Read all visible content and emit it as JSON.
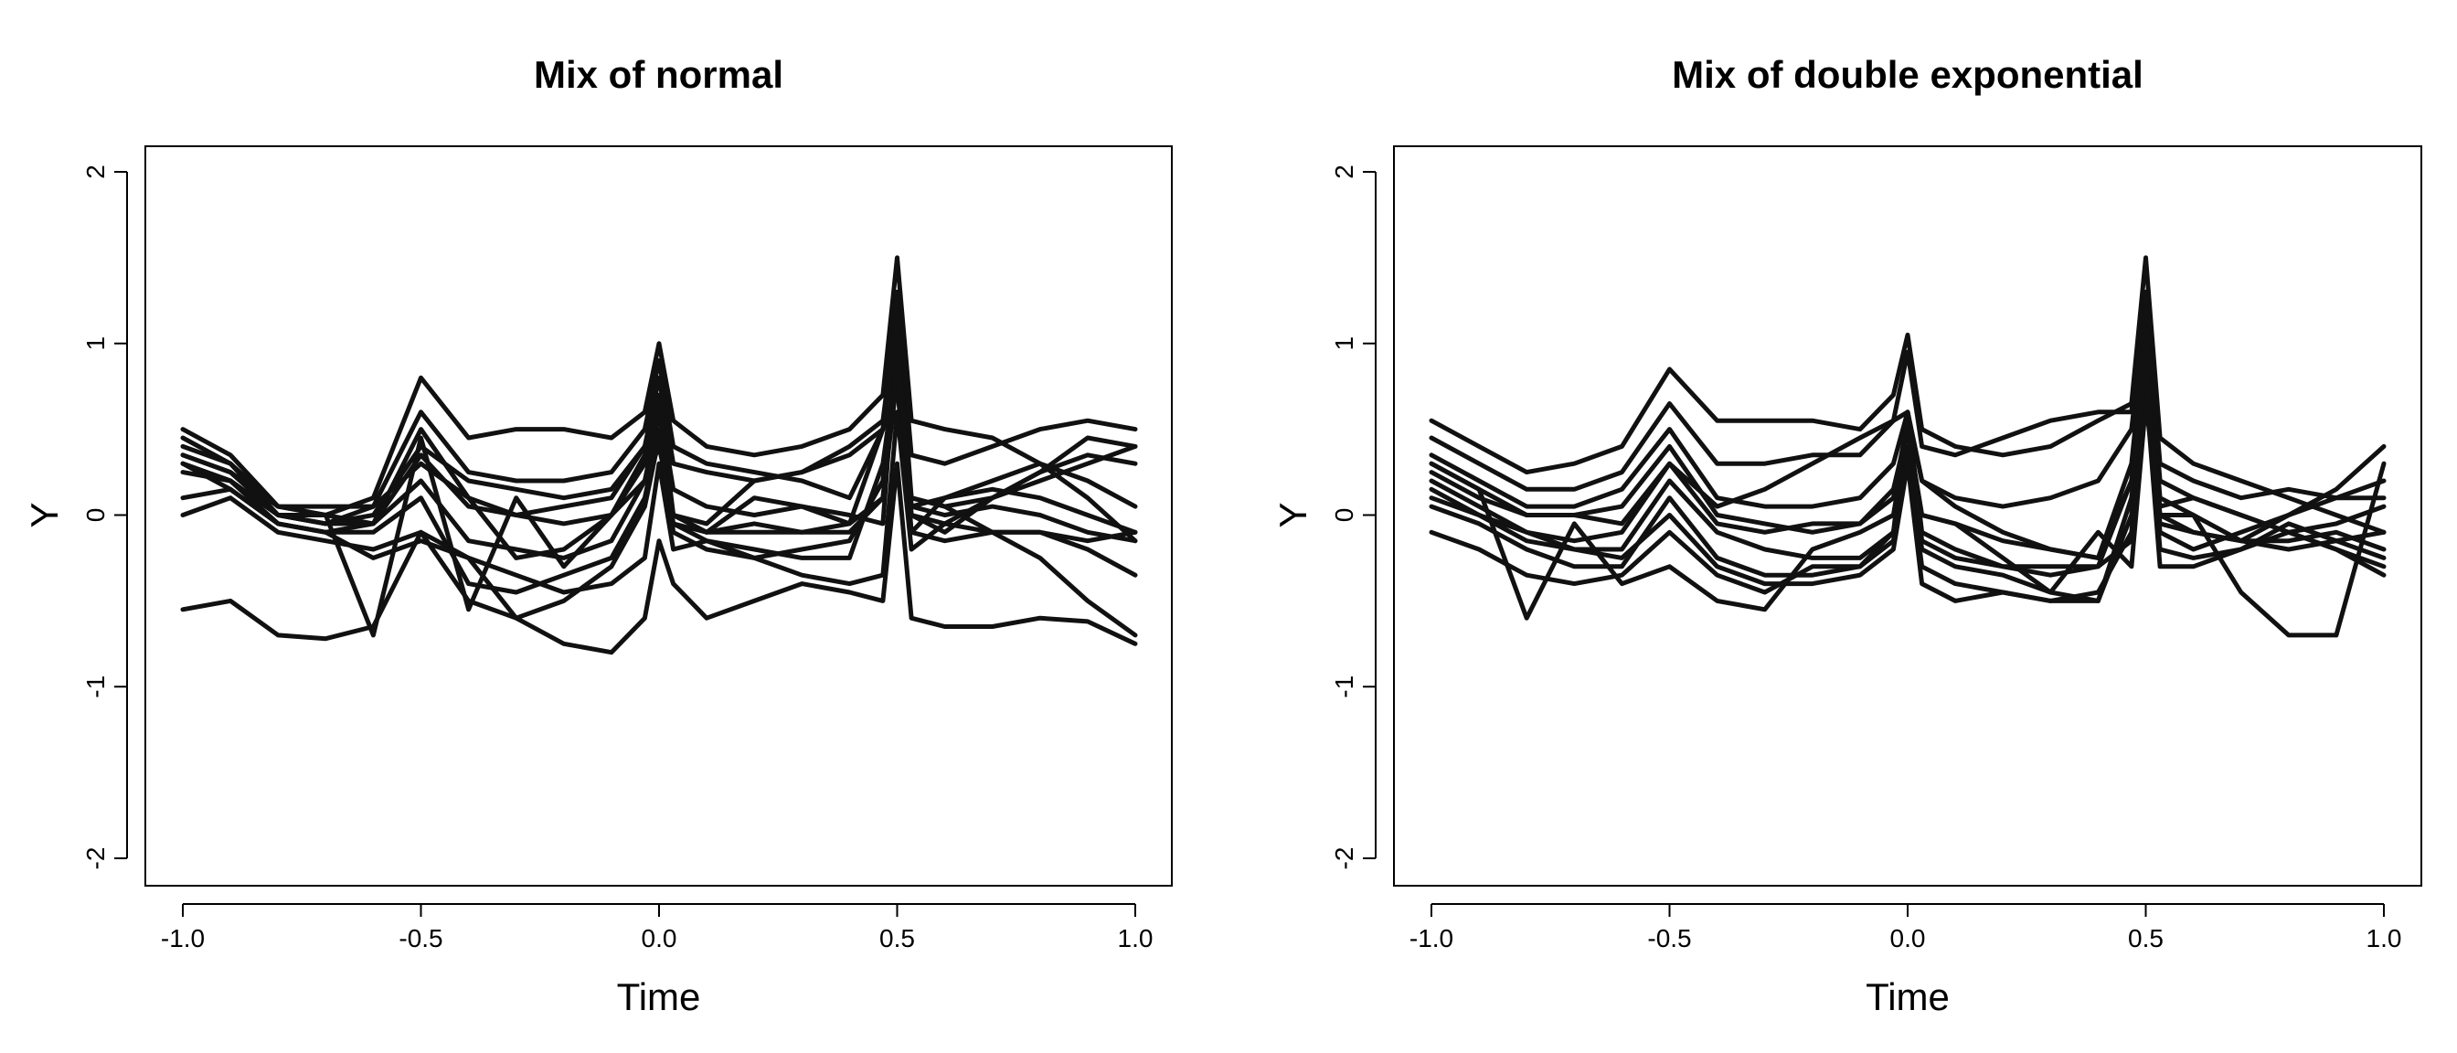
{
  "chart_data": [
    {
      "type": "line",
      "title": "Mix of normal",
      "xlabel": "Time",
      "ylabel": "Y",
      "xlim": [
        -1.0,
        1.0
      ],
      "ylim": [
        -2,
        2
      ],
      "xticks": [
        -1.0,
        -0.5,
        0.0,
        0.5,
        1.0
      ],
      "xtick_labels": [
        "-1.0",
        "-0.5",
        "0.0",
        "0.5",
        "1.0"
      ],
      "yticks": [
        -2,
        -1,
        0,
        1,
        2
      ],
      "ytick_labels": [
        "-2",
        "-1",
        "0",
        "1",
        "2"
      ],
      "line_color": "#111111",
      "x": [
        -1.0,
        -0.9,
        -0.8,
        -0.7,
        -0.6,
        -0.5,
        -0.4,
        -0.3,
        -0.2,
        -0.1,
        -0.03,
        0.0,
        0.03,
        0.1,
        0.2,
        0.3,
        0.4,
        0.47,
        0.5,
        0.53,
        0.6,
        0.7,
        0.8,
        0.9,
        1.0
      ],
      "series": [
        {
          "values": [
            0.5,
            0.35,
            0.05,
            0.0,
            0.1,
            0.8,
            0.45,
            0.5,
            0.5,
            0.45,
            0.6,
            1.0,
            0.55,
            0.4,
            0.35,
            0.4,
            0.5,
            0.7,
            1.5,
            0.55,
            0.5,
            0.45,
            0.3,
            0.2,
            0.05
          ]
        },
        {
          "values": [
            0.4,
            0.3,
            0.0,
            -0.05,
            0.05,
            0.6,
            0.25,
            0.2,
            0.2,
            0.25,
            0.5,
            0.9,
            0.4,
            0.3,
            0.25,
            0.2,
            0.1,
            0.5,
            1.3,
            0.35,
            0.3,
            0.4,
            0.5,
            0.55,
            0.5
          ]
        },
        {
          "values": [
            0.3,
            0.2,
            0.0,
            -0.05,
            0.0,
            0.4,
            0.2,
            0.15,
            0.1,
            0.15,
            0.4,
            0.8,
            0.3,
            0.25,
            0.2,
            0.25,
            0.4,
            0.55,
            1.2,
            0.1,
            0.05,
            0.1,
            0.2,
            0.3,
            0.4
          ]
        },
        {
          "values": [
            0.35,
            0.25,
            0.05,
            0.05,
            0.05,
            0.3,
            0.1,
            0.0,
            -0.05,
            0.0,
            0.3,
            0.7,
            0.0,
            -0.1,
            -0.05,
            -0.1,
            -0.05,
            0.5,
            1.1,
            0.05,
            0.0,
            0.05,
            0.0,
            -0.1,
            -0.15
          ]
        },
        {
          "values": [
            0.25,
            0.2,
            -0.05,
            -0.1,
            -0.05,
            0.2,
            -0.15,
            -0.2,
            -0.25,
            -0.15,
            0.2,
            0.6,
            -0.1,
            -0.2,
            -0.25,
            -0.2,
            -0.15,
            0.2,
            1.0,
            -0.1,
            -0.15,
            -0.1,
            -0.1,
            -0.15,
            -0.1
          ]
        },
        {
          "values": [
            0.1,
            0.15,
            -0.05,
            -0.1,
            -0.1,
            0.1,
            -0.4,
            -0.45,
            -0.35,
            -0.25,
            0.1,
            0.5,
            -0.05,
            -0.15,
            -0.2,
            -0.25,
            -0.25,
            0.3,
            0.9,
            0.05,
            0.1,
            0.2,
            0.3,
            0.1,
            -0.15
          ]
        },
        {
          "values": [
            0.0,
            0.1,
            -0.1,
            -0.15,
            -0.2,
            -0.1,
            -0.5,
            -0.6,
            -0.5,
            -0.3,
            0.05,
            0.45,
            -0.05,
            -0.1,
            -0.1,
            -0.1,
            -0.1,
            0.1,
            0.8,
            0.0,
            -0.05,
            -0.1,
            -0.1,
            -0.2,
            -0.35
          ]
        },
        {
          "values": [
            0.45,
            0.3,
            0.05,
            0.0,
            -0.05,
            0.5,
            0.1,
            -0.25,
            -0.2,
            0.0,
            0.35,
            0.6,
            0.0,
            -0.05,
            0.2,
            0.25,
            0.35,
            0.5,
            0.75,
            -0.1,
            0.1,
            0.15,
            0.1,
            0.0,
            -0.1
          ]
        },
        {
          "values": [
            0.3,
            0.15,
            -0.05,
            -0.1,
            -0.25,
            -0.15,
            -0.25,
            -0.35,
            -0.45,
            -0.4,
            -0.25,
            0.3,
            -0.2,
            -0.15,
            -0.25,
            -0.35,
            -0.4,
            -0.35,
            0.6,
            -0.2,
            -0.05,
            0.1,
            0.25,
            0.45,
            0.4
          ]
        },
        {
          "values": [
            0.3,
            0.2,
            0.0,
            0.0,
            -0.7,
            0.45,
            -0.55,
            0.1,
            -0.3,
            0.0,
            0.2,
            0.4,
            0.0,
            -0.1,
            0.1,
            0.05,
            0.0,
            -0.05,
            1.05,
            0.0,
            -0.1,
            0.1,
            0.25,
            0.35,
            0.3
          ]
        },
        {
          "values": [
            -0.55,
            -0.5,
            -0.7,
            -0.72,
            -0.65,
            -0.1,
            -0.25,
            -0.6,
            -0.75,
            -0.8,
            -0.6,
            -0.15,
            -0.4,
            -0.6,
            -0.5,
            -0.4,
            -0.45,
            -0.5,
            0.3,
            -0.6,
            -0.65,
            -0.65,
            -0.6,
            -0.62,
            -0.75
          ]
        },
        {
          "values": [
            0.35,
            0.25,
            0.0,
            -0.05,
            -0.05,
            0.35,
            0.05,
            0.0,
            0.05,
            0.1,
            0.4,
            0.65,
            0.15,
            0.05,
            0.0,
            0.05,
            -0.05,
            0.1,
            0.9,
            0.1,
            0.05,
            -0.1,
            -0.25,
            -0.5,
            -0.7
          ]
        }
      ]
    },
    {
      "type": "line",
      "title": "Mix of double exponential",
      "xlabel": "Time",
      "ylabel": "Y",
      "xlim": [
        -1.0,
        1.0
      ],
      "ylim": [
        -2,
        2
      ],
      "xticks": [
        -1.0,
        -0.5,
        0.0,
        0.5,
        1.0
      ],
      "xtick_labels": [
        "-1.0",
        "-0.5",
        "0.0",
        "0.5",
        "1.0"
      ],
      "yticks": [
        -2,
        -1,
        0,
        1,
        2
      ],
      "ytick_labels": [
        "-2",
        "-1",
        "0",
        "1",
        "2"
      ],
      "line_color": "#111111",
      "x": [
        -1.0,
        -0.9,
        -0.8,
        -0.7,
        -0.6,
        -0.5,
        -0.4,
        -0.3,
        -0.2,
        -0.1,
        -0.03,
        0.0,
        0.03,
        0.1,
        0.2,
        0.3,
        0.4,
        0.47,
        0.5,
        0.53,
        0.6,
        0.7,
        0.8,
        0.9,
        1.0
      ],
      "series": [
        {
          "values": [
            0.55,
            0.4,
            0.25,
            0.3,
            0.4,
            0.85,
            0.55,
            0.55,
            0.55,
            0.5,
            0.7,
            1.05,
            0.5,
            0.4,
            0.35,
            0.4,
            0.55,
            0.65,
            1.5,
            0.45,
            0.3,
            0.2,
            0.1,
            0.0,
            -0.1
          ]
        },
        {
          "values": [
            0.45,
            0.3,
            0.15,
            0.15,
            0.25,
            0.65,
            0.3,
            0.3,
            0.35,
            0.35,
            0.55,
            0.95,
            0.4,
            0.35,
            0.45,
            0.55,
            0.6,
            0.6,
            1.3,
            0.3,
            0.2,
            0.1,
            0.15,
            0.1,
            0.1
          ]
        },
        {
          "values": [
            0.35,
            0.2,
            0.05,
            0.05,
            0.15,
            0.5,
            0.1,
            0.05,
            0.05,
            0.1,
            0.3,
            0.6,
            0.2,
            0.1,
            0.05,
            0.1,
            0.2,
            0.5,
            1.2,
            0.2,
            0.1,
            0.0,
            -0.1,
            -0.05,
            0.05
          ]
        },
        {
          "values": [
            0.3,
            0.15,
            0.0,
            0.0,
            0.05,
            0.4,
            0.0,
            -0.05,
            -0.1,
            -0.05,
            0.15,
            0.5,
            0.0,
            -0.05,
            -0.15,
            -0.2,
            -0.25,
            0.3,
            1.1,
            0.1,
            0.0,
            -0.15,
            -0.2,
            -0.15,
            -0.1
          ]
        },
        {
          "values": [
            0.2,
            0.05,
            -0.1,
            -0.15,
            -0.1,
            0.3,
            0.05,
            0.15,
            0.3,
            0.45,
            0.55,
            0.6,
            0.2,
            0.05,
            -0.1,
            -0.2,
            -0.25,
            0.2,
            1.0,
            0.0,
            -0.1,
            -0.15,
            0.0,
            0.15,
            0.4
          ]
        },
        {
          "values": [
            0.15,
            0.0,
            -0.1,
            -0.2,
            -0.2,
            0.2,
            -0.1,
            -0.2,
            -0.25,
            -0.25,
            -0.1,
            0.4,
            -0.2,
            -0.3,
            -0.35,
            -0.45,
            -0.5,
            0.1,
            0.9,
            -0.1,
            -0.2,
            -0.1,
            0.0,
            0.1,
            0.2
          ]
        },
        {
          "values": [
            0.05,
            -0.05,
            -0.2,
            -0.3,
            -0.3,
            0.1,
            -0.25,
            -0.35,
            -0.35,
            -0.3,
            -0.15,
            0.35,
            -0.3,
            -0.4,
            -0.45,
            -0.5,
            -0.5,
            0.0,
            0.8,
            -0.2,
            -0.25,
            -0.2,
            -0.05,
            -0.15,
            -0.25
          ]
        },
        {
          "values": [
            0.1,
            0.0,
            -0.15,
            -0.2,
            -0.25,
            0.0,
            -0.3,
            -0.4,
            -0.4,
            -0.35,
            -0.2,
            0.3,
            -0.4,
            -0.5,
            -0.45,
            -0.5,
            -0.45,
            -0.1,
            0.75,
            -0.3,
            -0.3,
            -0.2,
            -0.1,
            -0.2,
            -0.3
          ]
        },
        {
          "values": [
            -0.1,
            -0.2,
            -0.35,
            -0.4,
            -0.35,
            -0.1,
            -0.35,
            -0.45,
            -0.3,
            -0.3,
            -0.1,
            0.6,
            -0.1,
            -0.2,
            -0.3,
            -0.35,
            -0.3,
            -0.15,
            0.7,
            0.05,
            0.1,
            0.0,
            -0.1,
            -0.2,
            -0.35
          ]
        },
        {
          "values": [
            0.3,
            0.15,
            -0.6,
            -0.05,
            -0.4,
            -0.3,
            -0.5,
            -0.55,
            -0.2,
            -0.1,
            0.0,
            0.5,
            0.0,
            -0.05,
            -0.25,
            -0.45,
            -0.1,
            -0.3,
            0.65,
            0.0,
            0.0,
            -0.45,
            -0.7,
            -0.7,
            0.3
          ]
        },
        {
          "values": [
            0.25,
            0.1,
            0.0,
            0.0,
            -0.05,
            0.3,
            -0.05,
            -0.1,
            -0.05,
            -0.05,
            0.1,
            0.55,
            -0.15,
            -0.25,
            -0.3,
            -0.3,
            -0.3,
            0.2,
            0.85,
            -0.05,
            -0.1,
            -0.15,
            -0.15,
            -0.1,
            -0.2
          ]
        }
      ]
    }
  ]
}
